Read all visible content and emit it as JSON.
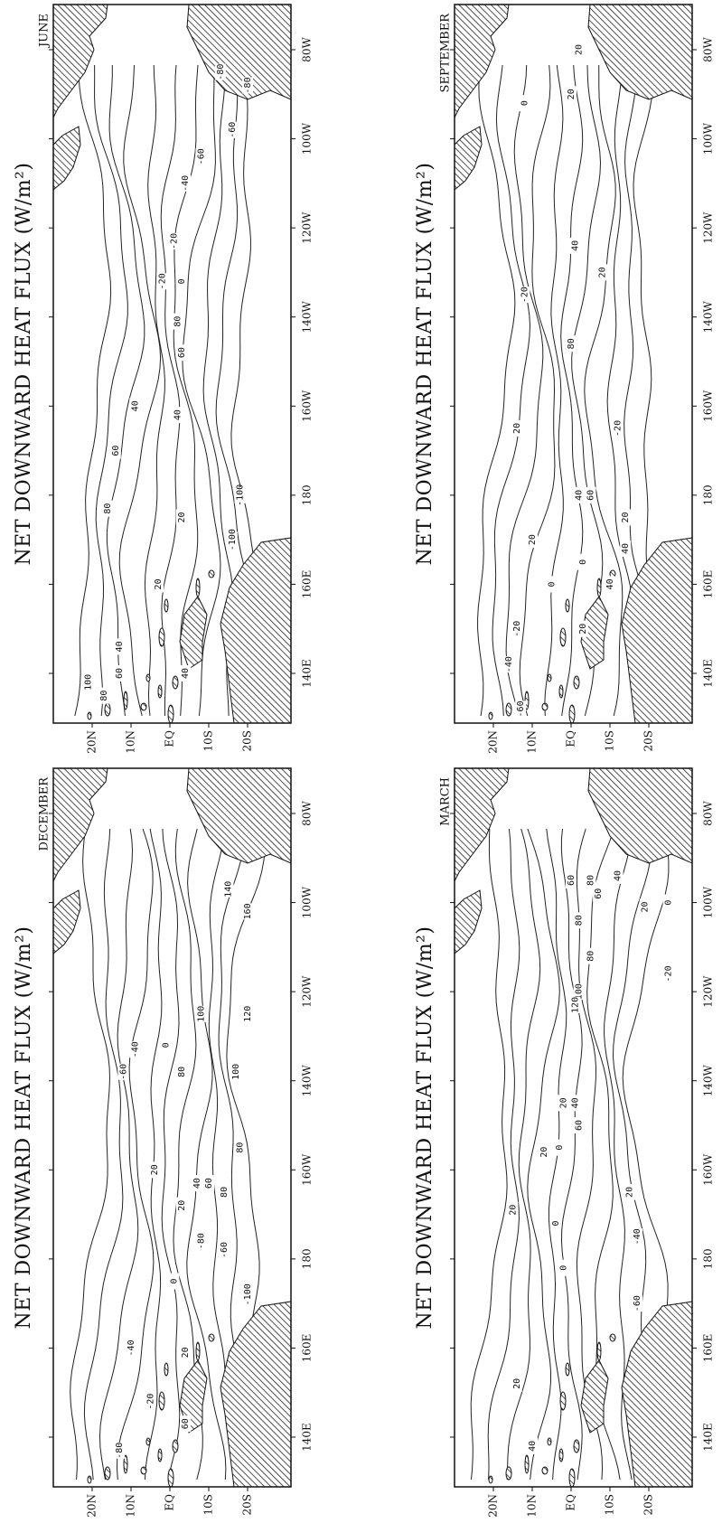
{
  "panels": [
    {
      "title": "NET DOWNWARD HEAT FLUX (W/m²)",
      "month": "JUNE",
      "lat_labels": [
        "20N",
        "10N",
        "EQ",
        "10S",
        "20S"
      ],
      "lon_labels": [
        "140E",
        "160E",
        "180",
        "160W",
        "140W",
        "120W",
        "100W",
        "80W"
      ],
      "contour_labels": [
        "80",
        "100",
        "60",
        "40",
        "40",
        "20",
        "80",
        "60",
        "40",
        "40",
        "60",
        "80",
        "0",
        "-20",
        "-40",
        "-60",
        "-80",
        "-100",
        "-100",
        "20",
        "-20",
        "-60",
        "-80"
      ]
    },
    {
      "title": "NET DOWNWARD HEAT FLUX (W/m²)",
      "month": "SEPTEMBER",
      "lat_labels": [
        "20N",
        "10N",
        "EQ",
        "10S",
        "20S"
      ],
      "lon_labels": [
        "140E",
        "160E",
        "180",
        "160W",
        "140W",
        "120W",
        "100W",
        "80W"
      ],
      "contour_labels": [
        "-60",
        "-40",
        "-20",
        "20",
        "0",
        "20",
        "20",
        "0",
        "40",
        "60",
        "80",
        "40",
        "20",
        "20",
        "40",
        "-20",
        "0",
        "20",
        "20",
        "40",
        "-20"
      ]
    },
    {
      "title": "NET DOWNWARD HEAT FLUX (W/m²)",
      "month": "DECEMBER",
      "lat_labels": [
        "20N",
        "10N",
        "EQ",
        "10S",
        "20S"
      ],
      "lon_labels": [
        "140E",
        "160E",
        "180",
        "160W",
        "140W",
        "120W",
        "100W",
        "80W"
      ],
      "contour_labels": [
        "-80",
        "-40",
        "-20",
        "60",
        "-60",
        "-40",
        "0",
        "20",
        "20",
        "40",
        "60",
        "80",
        "100",
        "100",
        "80",
        "120",
        "140",
        "160",
        "-60",
        "-80",
        "80",
        "-100",
        "0",
        "20"
      ]
    },
    {
      "title": "NET DOWNWARD HEAT FLUX (W/m²)",
      "month": "MARCH",
      "lat_labels": [
        "20N",
        "10N",
        "EQ",
        "10S",
        "20S"
      ],
      "lon_labels": [
        "140E",
        "160E",
        "180",
        "160W",
        "140W",
        "120W",
        "100W",
        "80W"
      ],
      "contour_labels": [
        "40",
        "20",
        "20",
        "0",
        "20",
        "0",
        "0",
        "20",
        "40",
        "60",
        "80",
        "100",
        "120",
        "80",
        "60",
        "40",
        "20",
        "20",
        "0",
        "-20",
        "-40",
        "-60",
        "60",
        "80"
      ]
    }
  ]
}
